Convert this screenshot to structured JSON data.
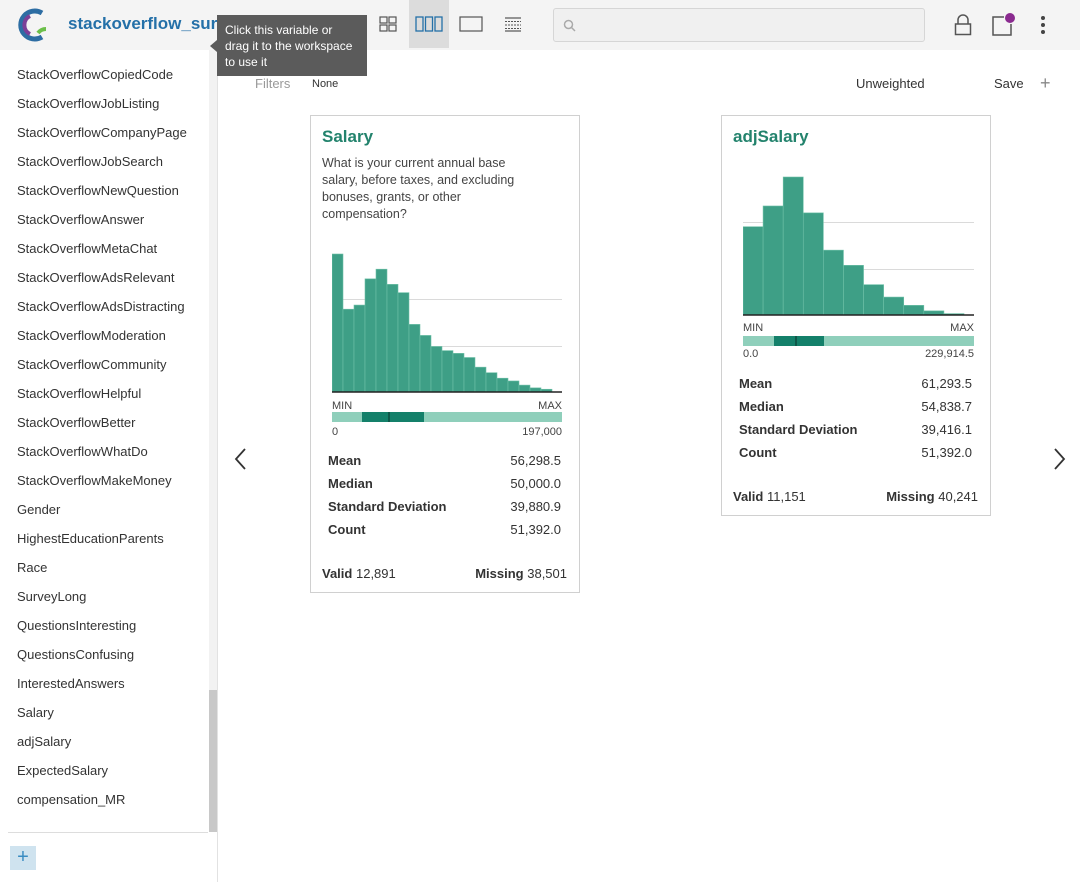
{
  "app": {
    "dataset_title": "stackoverflow_survey",
    "tooltip": "Click this variable or drag it to the workspace to use it",
    "search": {
      "placeholder": "",
      "value": ""
    }
  },
  "colors": {
    "accent": "#2470a8",
    "bar": "#3e9f86",
    "title_green": "#23836d",
    "range_light": "#8fcfbb",
    "range_dark": "#14806a"
  },
  "icons": [
    "logo-icon",
    "grid-view-icon",
    "columns-view-icon",
    "single-view-icon",
    "table-view-icon",
    "search-icon",
    "lock-icon",
    "notification-icon",
    "more-vert-icon",
    "chevron-left-icon",
    "chevron-right-icon",
    "plus-icon"
  ],
  "sidebar": {
    "items": [
      "StackOverflowCopiedCode",
      "StackOverflowJobListing",
      "StackOverflowCompanyPage",
      "StackOverflowJobSearch",
      "StackOverflowNewQuestion",
      "StackOverflowAnswer",
      "StackOverflowMetaChat",
      "StackOverflowAdsRelevant",
      "StackOverflowAdsDistracting",
      "StackOverflowModeration",
      "StackOverflowCommunity",
      "StackOverflowHelpful",
      "StackOverflowBetter",
      "StackOverflowWhatDo",
      "StackOverflowMakeMoney",
      "Gender",
      "HighestEducationParents",
      "Race",
      "SurveyLong",
      "QuestionsInteresting",
      "QuestionsConfusing",
      "InterestedAnswers",
      "Salary",
      "adjSalary",
      "ExpectedSalary",
      "compensation_MR"
    ],
    "add_label": "+"
  },
  "filterbar": {
    "filters_label": "Filters",
    "filters_value": "None",
    "weight_label": "Unweighted",
    "save_label": "Save",
    "add_label": "+"
  },
  "cards": [
    {
      "title": "Salary",
      "description": "What is your current annual base salary, before taxes, and excluding bonuses, grants, or other compensation?",
      "histogram": [
        1.0,
        0.6,
        0.63,
        0.82,
        0.89,
        0.78,
        0.72,
        0.49,
        0.41,
        0.33,
        0.3,
        0.28,
        0.25,
        0.18,
        0.14,
        0.1,
        0.08,
        0.05,
        0.03,
        0.02
      ],
      "min_label": "MIN",
      "max_label": "MAX",
      "range_min": "0",
      "range_max": "197,000",
      "stats": [
        {
          "label": "Mean",
          "value": "56,298.5"
        },
        {
          "label": "Median",
          "value": "50,000.0"
        },
        {
          "label": "Standard Deviation",
          "value": "39,880.9"
        },
        {
          "label": "Count",
          "value": "51,392.0"
        }
      ],
      "valid_label": "Valid",
      "valid_value": "12,891",
      "missing_label": "Missing",
      "missing_value": "38,501"
    },
    {
      "title": "adjSalary",
      "description": "",
      "histogram": [
        0.64,
        0.79,
        1.0,
        0.74,
        0.47,
        0.36,
        0.22,
        0.13,
        0.07,
        0.03,
        0.01
      ],
      "min_label": "MIN",
      "max_label": "MAX",
      "range_min": "0.0",
      "range_max": "229,914.5",
      "stats": [
        {
          "label": "Mean",
          "value": "61,293.5"
        },
        {
          "label": "Median",
          "value": "54,838.7"
        },
        {
          "label": "Standard Deviation",
          "value": "39,416.1"
        },
        {
          "label": "Count",
          "value": "51,392.0"
        }
      ],
      "valid_label": "Valid",
      "valid_value": "11,151",
      "missing_label": "Missing",
      "missing_value": "40,241"
    }
  ]
}
